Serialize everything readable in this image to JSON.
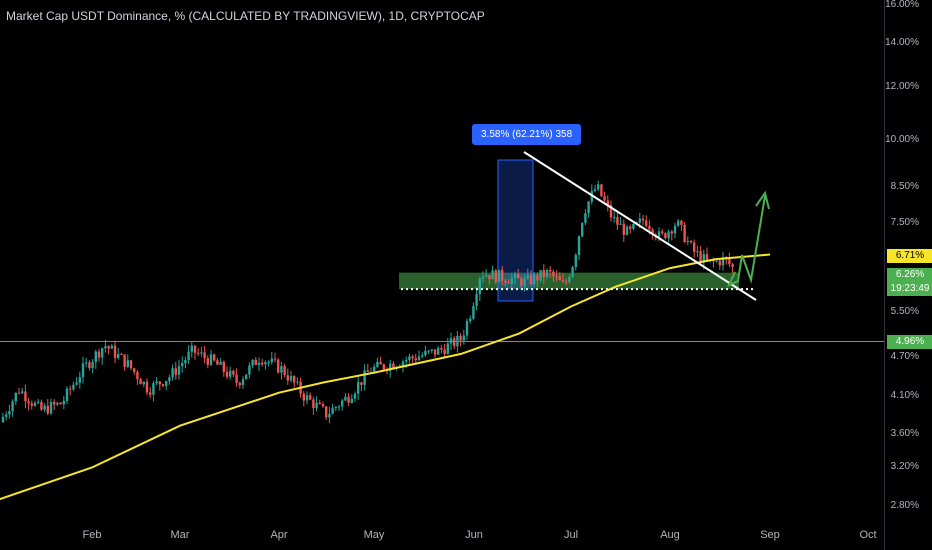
{
  "header": {
    "title": "Market Cap USDT Dominance, % (CALCULATED BY TRADINGVIEW), 1D, CRYPTOCAP"
  },
  "colors": {
    "up": "#26a69a",
    "down": "#ef5350",
    "ma": "#f7e52a",
    "zone": "#4caf50",
    "level": "#4caf50",
    "trend": "#ffffff",
    "projection": "#4caf50",
    "measure": "#2962ff",
    "background": "#000000"
  },
  "price_tags": {
    "ma_value": "6.71%",
    "last_value": "6.26%",
    "countdown": "19:23:49",
    "level_value": "4.96%"
  },
  "measure_label": "3.58% (62.21%) 358",
  "chart_data": {
    "type": "candlestick",
    "title": "Market Cap USDT Dominance, % (CALCULATED BY TRADINGVIEW), 1D, CRYPTOCAP",
    "y_scale": "log",
    "y_ticks": [
      "16.00%",
      "14.00%",
      "12.00%",
      "10.00%",
      "8.50%",
      "7.50%",
      "5.50%",
      "4.70%",
      "4.10%",
      "3.60%",
      "3.20%",
      "2.80%"
    ],
    "y_tick_values": [
      16.0,
      14.0,
      12.0,
      10.0,
      8.5,
      7.5,
      5.5,
      4.7,
      4.1,
      3.6,
      3.2,
      2.8
    ],
    "x_ticks": [
      "Feb",
      "Mar",
      "Apr",
      "May",
      "Jun",
      "Jul",
      "Aug",
      "Sep",
      "Oct"
    ],
    "ylim": [
      2.65,
      16.6
    ],
    "close_path": [
      [
        "Jan 1",
        3.7
      ],
      [
        "Jan 8",
        4.2
      ],
      [
        "Jan 15",
        3.9
      ],
      [
        "Jan 22",
        4.0
      ],
      [
        "Jan 29",
        4.5
      ],
      [
        "Feb 5",
        4.9
      ],
      [
        "Feb 12",
        4.6
      ],
      [
        "Feb 19",
        4.2
      ],
      [
        "Feb 26",
        4.4
      ],
      [
        "Mar 5",
        4.8
      ],
      [
        "Mar 12",
        4.6
      ],
      [
        "Mar 19",
        4.3
      ],
      [
        "Mar 26",
        4.7
      ],
      [
        "Apr 2",
        4.5
      ],
      [
        "Apr 9",
        4.1
      ],
      [
        "Apr 16",
        3.85
      ],
      [
        "Apr 23",
        4.1
      ],
      [
        "Apr 30",
        4.5
      ],
      [
        "May 7",
        4.6
      ],
      [
        "May 14",
        4.7
      ],
      [
        "May 21",
        4.8
      ],
      [
        "May 28",
        5.0
      ],
      [
        "May 31",
        5.5
      ],
      [
        "Jun 3",
        6.3
      ],
      [
        "Jun 10",
        6.2
      ],
      [
        "Jun 17",
        6.1
      ],
      [
        "Jun 24",
        6.3
      ],
      [
        "Jun 29",
        6.0
      ],
      [
        "Jul 2",
        6.6
      ],
      [
        "Jul 5",
        7.8
      ],
      [
        "Jul 9",
        8.5
      ],
      [
        "Jul 14",
        7.6
      ],
      [
        "Jul 19",
        7.2
      ],
      [
        "Jul 24",
        7.6
      ],
      [
        "Jul 29",
        7.1
      ],
      [
        "Aug 3",
        7.5
      ],
      [
        "Aug 8",
        6.8
      ],
      [
        "Aug 13",
        6.5
      ],
      [
        "Aug 18",
        6.6
      ],
      [
        "Aug 23",
        6.2
      ],
      [
        "Aug 26",
        6.1
      ],
      [
        "Aug 30",
        6.26
      ]
    ],
    "moving_average": [
      [
        "Jan 1",
        2.86
      ],
      [
        "Feb 1",
        3.2
      ],
      [
        "Mar 1",
        3.7
      ],
      [
        "Apr 1",
        4.15
      ],
      [
        "Apr 15",
        4.3
      ],
      [
        "May 1",
        4.45
      ],
      [
        "May 28",
        4.75
      ],
      [
        "Jun 15",
        5.1
      ],
      [
        "Jul 1",
        5.6
      ],
      [
        "Jul 15",
        6.0
      ],
      [
        "Aug 1",
        6.4
      ],
      [
        "Aug 15",
        6.6
      ],
      [
        "Sep 1",
        6.71
      ]
    ],
    "support_zone": [
      5.95,
      6.3
    ],
    "support_dotted": 5.95,
    "horizontal_level": 4.96,
    "measure": {
      "change": "3.58%",
      "percent": "62.21%",
      "bars": 358
    },
    "legend": "none",
    "grid": false
  }
}
